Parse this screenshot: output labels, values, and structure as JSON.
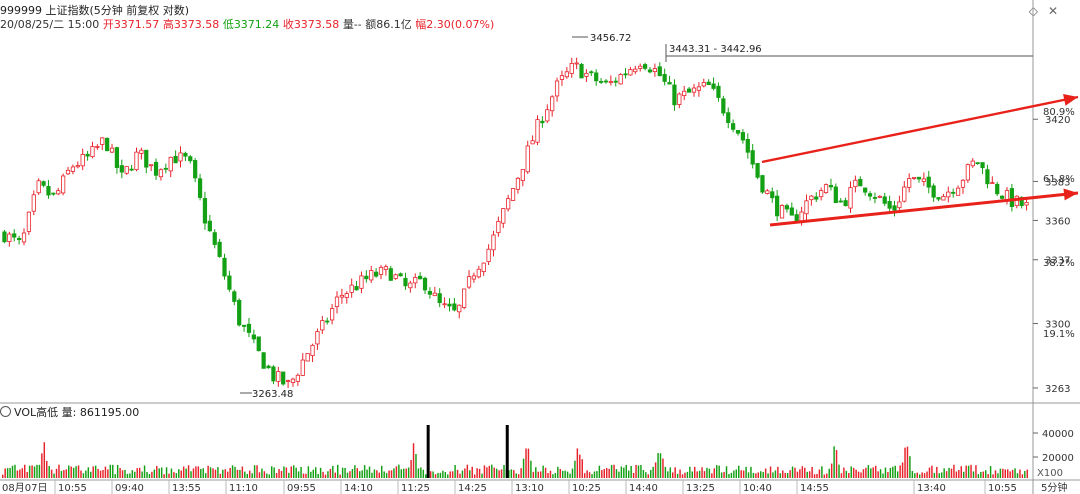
{
  "header": {
    "symbol_title": "999999 上证指数(5分钟 前复权 对数)",
    "date": "20/08/25/二 15:00",
    "open_label": "开",
    "open_value": "3371.57",
    "high_label": "高",
    "high_value": "3373.58",
    "low_label": "低",
    "low_value": "3371.24",
    "close_label": "收",
    "close_value": "3373.58",
    "vol_label": "量--",
    "amount_label": "额",
    "amount_value": "86.1亿",
    "change_label": "幅",
    "change_value": "2.30(0.07%)",
    "zoom_icon": "diamond-icon",
    "close_icon": "close-icon"
  },
  "volume_panel": {
    "title": "VOL高低 量: 861195.00",
    "multiplier": "X100",
    "y_ticks": [
      "40000",
      "20000"
    ]
  },
  "period_label": "5分钟",
  "colors": {
    "up": "#e8222a",
    "down": "#14a014",
    "trend": "#e8221a",
    "level": "#555555"
  },
  "chart_data": [
    {
      "type": "candlestick",
      "scale": "log",
      "ylim": [
        3255,
        3475
      ],
      "y_ticks": [
        "3263",
        "3300",
        "3337",
        "3360",
        "3383",
        "3420"
      ],
      "fib_labels": [
        "80.9%",
        "61.8%",
        "38.2%",
        "19.1%"
      ],
      "x_tick_labels": [
        "08月07日",
        "10:55",
        "09:40",
        "13:55",
        "11:10",
        "09:55",
        "14:10",
        "11:25",
        "14:25",
        "13:10",
        "10:25",
        "14:40",
        "13:25",
        "10:40",
        "14:55",
        "13:40",
        "10:55"
      ],
      "annotations": {
        "high": "3456.72",
        "low": "3263.48",
        "range_line": "3443.31 - 3442.96"
      },
      "trend_path": [
        3352,
        3345,
        3380,
        3373,
        3392,
        3397,
        3408,
        3385,
        3400,
        3389,
        3398,
        3395,
        3360,
        3332,
        3302,
        3285,
        3270,
        3264,
        3282,
        3298,
        3316,
        3322,
        3328,
        3330,
        3320,
        3325,
        3310,
        3305,
        3330,
        3345,
        3370,
        3395,
        3420,
        3440,
        3452,
        3445,
        3440,
        3448,
        3456,
        3448,
        3432,
        3436,
        3440,
        3425,
        3410,
        3385,
        3368,
        3360,
        3372,
        3380,
        3370,
        3383,
        3375,
        3365,
        3385,
        3380,
        3375,
        3383,
        3396,
        3380,
        3372,
        3368
      ],
      "trend_lines": [
        {
          "from": [
            0,
            3382
          ],
          "to": [
            1,
            3425
          ]
        },
        {
          "from": [
            0,
            3352
          ],
          "to": [
            1,
            3367
          ]
        }
      ]
    },
    {
      "type": "bar",
      "name": "VOL",
      "ylim": [
        0,
        52000
      ],
      "spikes": [
        0.04,
        0.4,
        0.51,
        0.56,
        0.64,
        0.81,
        0.88
      ],
      "big_bars": [
        0.4135,
        0.4905
      ]
    }
  ]
}
